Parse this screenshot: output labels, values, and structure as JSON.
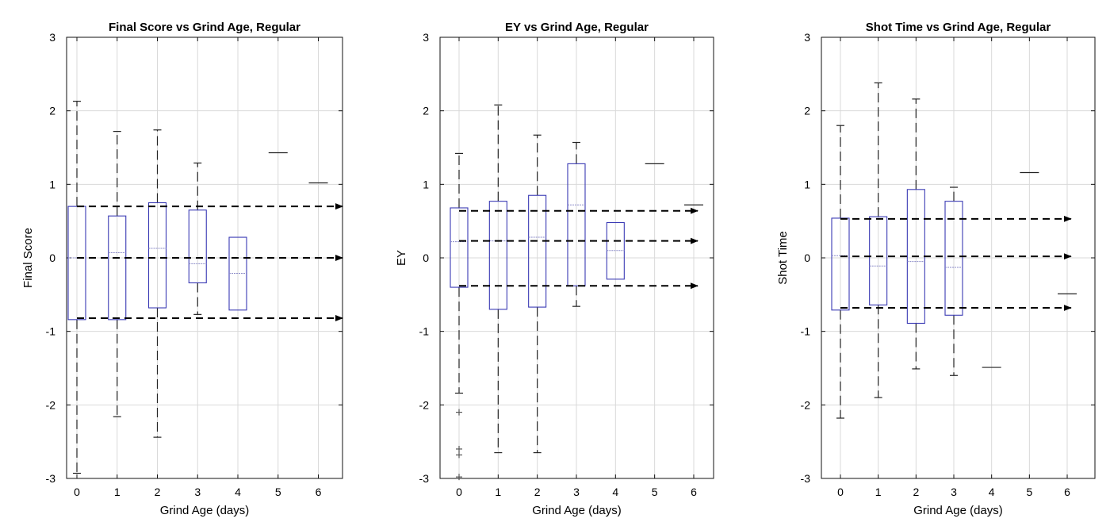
{
  "chart_data": [
    {
      "type": "box",
      "title": "Final Score vs Grind Age, Regular",
      "xlabel": "Grind Age (days)",
      "ylabel": "Final Score",
      "categories": [
        "0",
        "1",
        "2",
        "3",
        "4",
        "5",
        "6"
      ],
      "ylim": [
        -3,
        3
      ],
      "yticks": [
        "-3",
        "-2",
        "-1",
        "0",
        "1",
        "2",
        "3"
      ],
      "grid": true,
      "boxes": [
        {
          "x": 0,
          "q1": -0.84,
          "median": 0.0,
          "q3": 0.7,
          "whisker_low": -2.93,
          "whisker_high": 2.13,
          "outliers": []
        },
        {
          "x": 1,
          "q1": -0.84,
          "median": 0.07,
          "q3": 0.57,
          "whisker_low": -2.16,
          "whisker_high": 1.72,
          "outliers": []
        },
        {
          "x": 2,
          "q1": -0.68,
          "median": 0.13,
          "q3": 0.75,
          "whisker_low": -2.44,
          "whisker_high": 1.74,
          "outliers": []
        },
        {
          "x": 3,
          "q1": -0.34,
          "median": -0.08,
          "q3": 0.65,
          "whisker_low": -0.77,
          "whisker_high": 1.29,
          "outliers": []
        },
        {
          "x": 4,
          "q1": -0.71,
          "median": -0.21,
          "q3": 0.28,
          "whisker_low": -0.71,
          "whisker_high": 0.28,
          "outliers": []
        },
        {
          "x": 5,
          "q1": 1.43,
          "median": 1.43,
          "q3": 1.43,
          "whisker_low": 1.43,
          "whisker_high": 1.43,
          "outliers": []
        },
        {
          "x": 6,
          "q1": 1.02,
          "median": 1.02,
          "q3": 1.02,
          "whisker_low": 1.02,
          "whisker_high": 1.02,
          "outliers": []
        }
      ],
      "reference_arrows": [
        {
          "y": 0.7,
          "x_start": 0,
          "x_end": 6.6
        },
        {
          "y": 0.0,
          "x_start": 0,
          "x_end": 6.6
        },
        {
          "y": -0.82,
          "x_start": 0,
          "x_end": 6.6
        }
      ]
    },
    {
      "type": "box",
      "title": "EY  vs Grind Age, Regular",
      "xlabel": "Grind Age (days)",
      "ylabel": "EY",
      "categories": [
        "0",
        "1",
        "2",
        "3",
        "4",
        "5",
        "6"
      ],
      "ylim": [
        -3,
        3
      ],
      "yticks": [
        "-3",
        "-2",
        "-1",
        "0",
        "1",
        "2",
        "3"
      ],
      "grid": true,
      "boxes": [
        {
          "x": 0,
          "q1": -0.4,
          "median": 0.22,
          "q3": 0.68,
          "whisker_low": -1.84,
          "whisker_high": 1.42,
          "outliers": [
            -2.1,
            -2.6,
            -2.68,
            -2.98
          ]
        },
        {
          "x": 1,
          "q1": -0.7,
          "median": 0.23,
          "q3": 0.77,
          "whisker_low": -2.65,
          "whisker_high": 2.08,
          "outliers": []
        },
        {
          "x": 2,
          "q1": -0.67,
          "median": 0.28,
          "q3": 0.85,
          "whisker_low": -2.65,
          "whisker_high": 1.67,
          "outliers": []
        },
        {
          "x": 3,
          "q1": -0.38,
          "median": 0.72,
          "q3": 1.28,
          "whisker_low": -0.66,
          "whisker_high": 1.57,
          "outliers": []
        },
        {
          "x": 4,
          "q1": -0.29,
          "median": 0.1,
          "q3": 0.48,
          "whisker_low": -0.29,
          "whisker_high": 0.48,
          "outliers": []
        },
        {
          "x": 5,
          "q1": 1.28,
          "median": 1.28,
          "q3": 1.28,
          "whisker_low": 1.28,
          "whisker_high": 1.28,
          "outliers": []
        },
        {
          "x": 6,
          "q1": 0.72,
          "median": 0.72,
          "q3": 0.72,
          "whisker_low": 0.72,
          "whisker_high": 0.72,
          "outliers": []
        }
      ],
      "reference_arrows": [
        {
          "y": 0.64,
          "x_start": 0,
          "x_end": 6.1
        },
        {
          "y": 0.23,
          "x_start": 0,
          "x_end": 6.1
        },
        {
          "y": -0.38,
          "x_start": 0,
          "x_end": 6.1
        }
      ]
    },
    {
      "type": "box",
      "title": "Shot Time  vs Grind Age, Regular",
      "xlabel": "Grind Age (days)",
      "ylabel": "Shot Time",
      "categories": [
        "0",
        "1",
        "2",
        "3",
        "4",
        "5",
        "6"
      ],
      "ylim": [
        -3,
        3
      ],
      "yticks": [
        "-3",
        "-2",
        "-1",
        "0",
        "1",
        "2",
        "3"
      ],
      "grid": true,
      "boxes": [
        {
          "x": 0,
          "q1": -0.71,
          "median": 0.03,
          "q3": 0.54,
          "whisker_low": -2.18,
          "whisker_high": 1.8,
          "outliers": []
        },
        {
          "x": 1,
          "q1": -0.64,
          "median": -0.11,
          "q3": 0.56,
          "whisker_low": -1.9,
          "whisker_high": 2.38,
          "outliers": []
        },
        {
          "x": 2,
          "q1": -0.89,
          "median": -0.05,
          "q3": 0.93,
          "whisker_low": -1.51,
          "whisker_high": 2.16,
          "outliers": []
        },
        {
          "x": 3,
          "q1": -0.78,
          "median": -0.13,
          "q3": 0.77,
          "whisker_low": -1.6,
          "whisker_high": 0.96,
          "outliers": []
        },
        {
          "x": 4,
          "q1": -1.49,
          "median": -1.49,
          "q3": -1.49,
          "whisker_low": -1.49,
          "whisker_high": -1.49,
          "outliers": []
        },
        {
          "x": 5,
          "q1": 1.16,
          "median": 1.16,
          "q3": 1.16,
          "whisker_low": 1.16,
          "whisker_high": 1.16,
          "outliers": []
        },
        {
          "x": 6,
          "q1": -0.49,
          "median": -0.49,
          "q3": -0.49,
          "whisker_low": -0.49,
          "whisker_high": -0.49,
          "outliers": []
        }
      ],
      "reference_arrows": [
        {
          "y": 0.53,
          "x_start": 0,
          "x_end": 6.1
        },
        {
          "y": 0.02,
          "x_start": 0,
          "x_end": 6.1
        },
        {
          "y": -0.68,
          "x_start": 0,
          "x_end": 6.1
        }
      ]
    }
  ],
  "colors": {
    "box": "#3a3ab4",
    "median": "#8a8ac8",
    "whisker": "#222222",
    "outlier": "#555555",
    "grid": "#d9d9d9",
    "axis": "#111111",
    "arrow": "#000000"
  }
}
